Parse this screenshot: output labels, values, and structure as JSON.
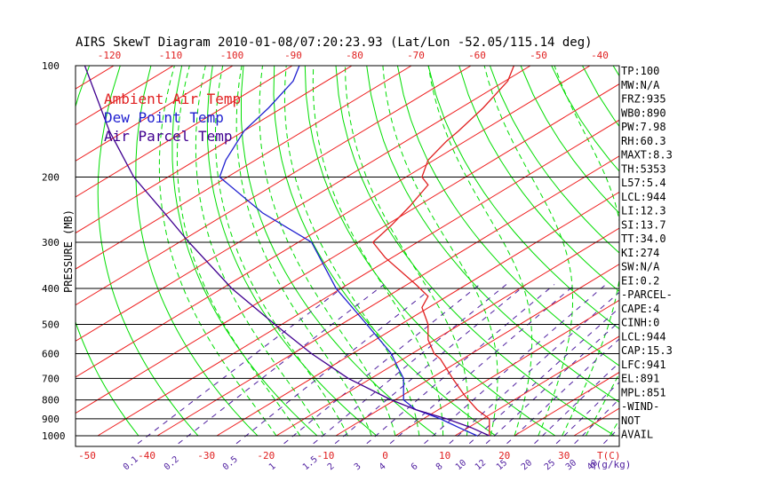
{
  "chart_data": {
    "type": "line",
    "title": "AIRS SkewT Diagram 2010-01-08/07:20:23.93 (Lat/Lon -52.05/115.14 deg)",
    "ylabel": "PRESSURE (MB)",
    "xlabel_bottom": "T(C)",
    "xlabel_mixing": "q(g/kg)",
    "y_scale": "log",
    "ylim": [
      1000,
      100
    ],
    "pressure_ticks": [
      100,
      200,
      300,
      400,
      500,
      600,
      700,
      800,
      900,
      1000
    ],
    "bottom_temp_ticks": [
      -50,
      -40,
      -30,
      -20,
      -10,
      0,
      10,
      20,
      30
    ],
    "top_temp_ticks": [
      -120,
      -110,
      -100,
      -90,
      -80,
      -70,
      -60,
      -50,
      -40
    ],
    "mixing_ratio_ticks": [
      "0.1",
      "0.2",
      "0.5",
      "1",
      "1.5",
      "2",
      "3",
      "4",
      "6",
      "8",
      "10",
      "12",
      "15",
      "20",
      "25",
      "30",
      "40"
    ],
    "legend": [
      {
        "name": "Ambient Air Temp",
        "color": "#e02020"
      },
      {
        "name": "Dew Point Temp",
        "color": "#2020d0"
      },
      {
        "name": "Air Parcel Temp",
        "color": "#400090"
      }
    ],
    "series": [
      {
        "name": "Ambient Air Temp",
        "color": "#e02020",
        "points": [
          [
            1000,
            -58
          ],
          [
            900,
            -58
          ],
          [
            850,
            -60
          ],
          [
            780,
            -62
          ],
          [
            700,
            -64
          ],
          [
            620,
            -66
          ],
          [
            600,
            -67
          ],
          [
            550,
            -68
          ],
          [
            500,
            -68
          ],
          [
            450,
            -69
          ],
          [
            420,
            -68
          ],
          [
            390,
            -70
          ],
          [
            330,
            -75
          ],
          [
            300,
            -77
          ],
          [
            270,
            -74
          ],
          [
            240,
            -71
          ],
          [
            210,
            -68
          ],
          [
            200,
            -69
          ],
          [
            180,
            -68
          ],
          [
            160,
            -65
          ],
          [
            150,
            -63
          ],
          [
            130,
            -59
          ],
          [
            110,
            -55
          ],
          [
            100,
            -54
          ]
        ]
      },
      {
        "name": "Dew Point Temp",
        "color": "#2020d0",
        "points": [
          [
            1000,
            -60
          ],
          [
            950,
            -63
          ],
          [
            900,
            -66
          ],
          [
            850,
            -70
          ],
          [
            800,
            -72
          ],
          [
            700,
            -72
          ],
          [
            650,
            -73
          ],
          [
            600,
            -74
          ],
          [
            500,
            -78
          ],
          [
            400,
            -83
          ],
          [
            300,
            -87
          ],
          [
            250,
            -95
          ],
          [
            200,
            -102
          ],
          [
            180,
            -101
          ],
          [
            150,
            -98
          ],
          [
            130,
            -94
          ],
          [
            110,
            -90
          ],
          [
            100,
            -89
          ]
        ]
      },
      {
        "name": "Air Parcel Temp",
        "color": "#400090",
        "points": [
          [
            1000,
            -58
          ],
          [
            950,
            -61
          ],
          [
            900,
            -65
          ],
          [
            850,
            -70
          ],
          [
            800,
            -74
          ],
          [
            700,
            -81
          ],
          [
            600,
            -87
          ],
          [
            500,
            -93
          ],
          [
            400,
            -100
          ],
          [
            300,
            -107
          ],
          [
            250,
            -111
          ],
          [
            200,
            -116
          ],
          [
            150,
            -120
          ],
          [
            100,
            -124
          ]
        ]
      }
    ],
    "indices": [
      "TP:100",
      "MW:N/A",
      "FRZ:935",
      "WB0:890",
      "PW:7.98",
      "RH:60.3",
      "MAXT:8.3",
      "TH:5353",
      "L57:5.4",
      "LCL:944",
      "LI:12.3",
      "SI:13.7",
      "TT:34.0",
      "KI:274",
      "SW:N/A",
      "EI:0.2",
      "-PARCEL-",
      "CAPE:4",
      "CINH:0",
      "LCL:944",
      "CAP:15.3",
      "LFC:941",
      "EL:891",
      "MPL:851",
      "-WIND-",
      "NOT",
      "AVAIL"
    ],
    "colors": {
      "dry_adiabat": "#00dd00",
      "moist_adiabat": "#00dd00",
      "isotherm": "#ee2020",
      "mixing_ratio": "#5020a0",
      "isobar": "#000000",
      "frame": "#000000"
    }
  }
}
